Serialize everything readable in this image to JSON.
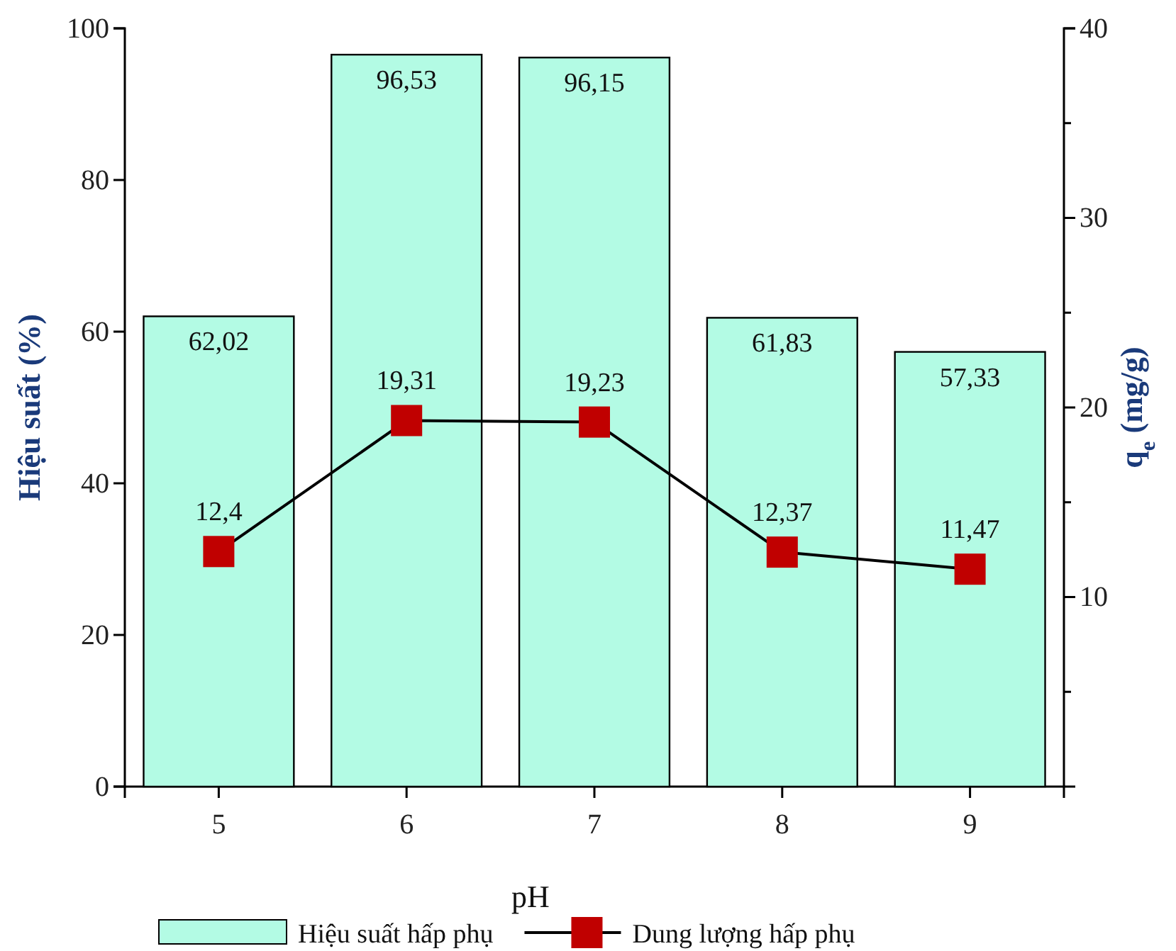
{
  "chart_data": {
    "type": "bar",
    "xlabel": "pH",
    "ylabel": "Hiệu suất (%)",
    "y2label": "q$_{e}$ (mg/g)",
    "categories": [
      "5",
      "6",
      "7",
      "8",
      "9"
    ],
    "series": [
      {
        "name": "Hiệu suất hấp phụ",
        "color": "#b3fbe4",
        "values": [
          62.02,
          96.53,
          96.15,
          61.83,
          57.33
        ],
        "value_labels": [
          "62,02",
          "96,53",
          "96,15",
          "61,83",
          "57,33"
        ]
      },
      {
        "type": "line",
        "name": "Dung lượng hấp phụ",
        "color": "#c00000",
        "axis": "y2",
        "marker": "square",
        "values": [
          12.4,
          19.31,
          19.23,
          12.37,
          11.47
        ],
        "value_labels": [
          "12,4",
          "19,31",
          "19,23",
          "12,37",
          "11,47"
        ]
      }
    ],
    "ylim": [
      0,
      100
    ],
    "yticks": [
      0,
      20,
      40,
      60,
      80,
      100
    ],
    "y2lim": [
      0,
      40
    ],
    "y2ticks": [
      {
        "value": 5,
        "label": null
      },
      10,
      {
        "value": 15,
        "label": null
      },
      20,
      {
        "value": 25,
        "label": null
      },
      30,
      {
        "value": 35,
        "label": null
      },
      40
    ],
    "legend": "bottom",
    "grid": false
  }
}
